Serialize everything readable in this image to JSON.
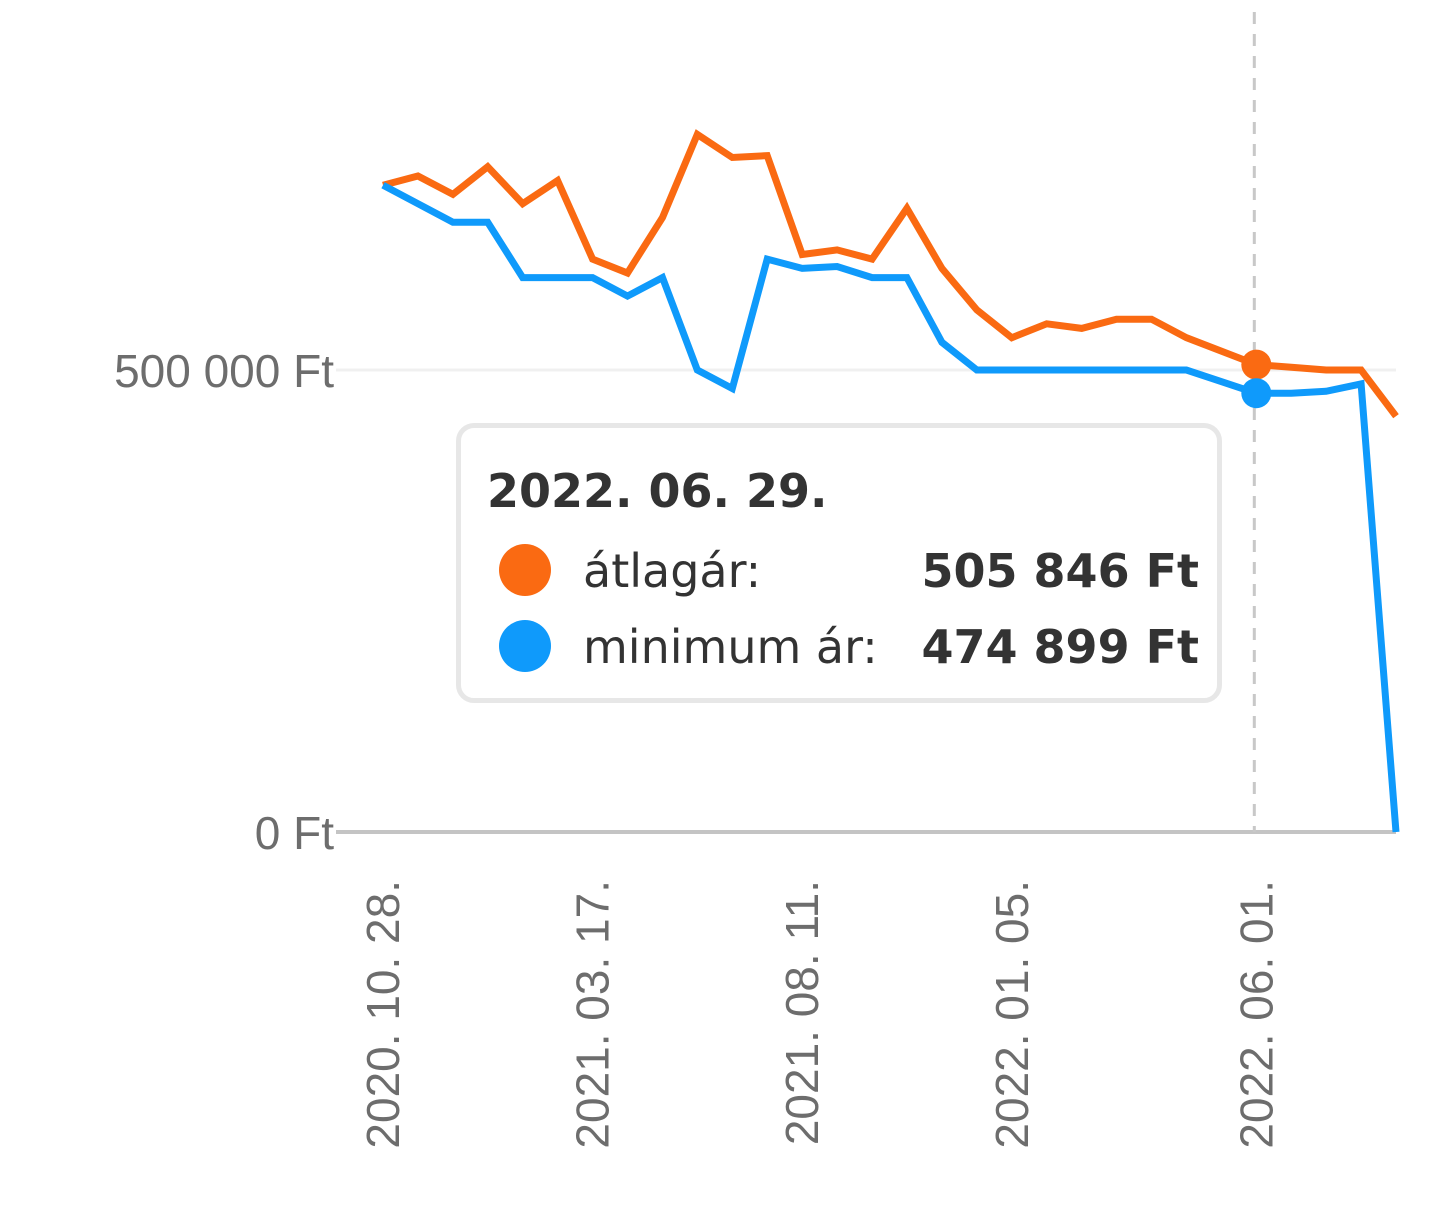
{
  "colors": {
    "atlagar": "#fa6a12",
    "minimum": "#0f9afb",
    "axis": "#c4c4c4",
    "gridline": "#f0f0f0",
    "crosshair": "#c8c8c8",
    "text": "#333333",
    "tick_text": "#6d6d6d"
  },
  "chart_data": {
    "type": "line",
    "y_unit": "Ft",
    "ylim": [
      0,
      1000000
    ],
    "y_ticks": [
      {
        "value": 0,
        "label": "0 Ft"
      },
      {
        "value": 500000,
        "label": "500 000 Ft"
      }
    ],
    "x_ticks": [
      {
        "index": 0,
        "label": "2020. 10. 28."
      },
      {
        "index": 6,
        "label": "2021. 03. 17."
      },
      {
        "index": 12,
        "label": "2021. 08. 11."
      },
      {
        "index": 18,
        "label": "2022. 01. 05."
      },
      {
        "index": 24,
        "label": "2022. 06. 01."
      }
    ],
    "grid": {
      "horizontal": true,
      "vertical": false
    },
    "series": [
      {
        "key": "atlagar",
        "values": [
          700000,
          710000,
          690000,
          720000,
          680000,
          705000,
          620000,
          605000,
          665000,
          755000,
          730000,
          732000,
          625000,
          630000,
          620000,
          675000,
          610000,
          565000,
          535000,
          550000,
          545000,
          555000,
          555000,
          535000,
          505846,
          503000,
          500000,
          500000,
          450000
        ],
        "x_fractions": [
          0,
          0.0345,
          0.069,
          0.1034,
          0.1379,
          0.1724,
          0.2069,
          0.2414,
          0.2759,
          0.3103,
          0.3448,
          0.3793,
          0.4138,
          0.4483,
          0.4828,
          0.5172,
          0.5517,
          0.5862,
          0.6207,
          0.6552,
          0.6897,
          0.7241,
          0.7586,
          0.7931,
          0.8621,
          0.8966,
          0.931,
          0.9655,
          1.0
        ]
      },
      {
        "key": "minimum",
        "values": [
          700000,
          680000,
          660000,
          660000,
          600000,
          600000,
          600000,
          580000,
          600000,
          500000,
          480000,
          620000,
          610000,
          612000,
          600000,
          600000,
          530000,
          500000,
          500000,
          500000,
          500000,
          500000,
          500000,
          500000,
          474899,
          474899,
          477000,
          485000,
          0
        ],
        "x_fractions": [
          0,
          0.0345,
          0.069,
          0.1034,
          0.1379,
          0.1724,
          0.2069,
          0.2414,
          0.2759,
          0.3103,
          0.3448,
          0.3793,
          0.4138,
          0.4483,
          0.4828,
          0.5172,
          0.5517,
          0.5862,
          0.6207,
          0.6552,
          0.6897,
          0.7241,
          0.7586,
          0.7931,
          0.8621,
          0.8966,
          0.931,
          0.9655,
          1.0
        ]
      }
    ],
    "highlight_index": 24
  },
  "tooltip": {
    "date": "2022. 06. 29.",
    "rows": [
      {
        "key": "atlagar",
        "label": "átlagár:",
        "value": "505 846 Ft"
      },
      {
        "key": "minimum",
        "label": "minimum ár:",
        "value": "474 899 Ft"
      }
    ]
  }
}
